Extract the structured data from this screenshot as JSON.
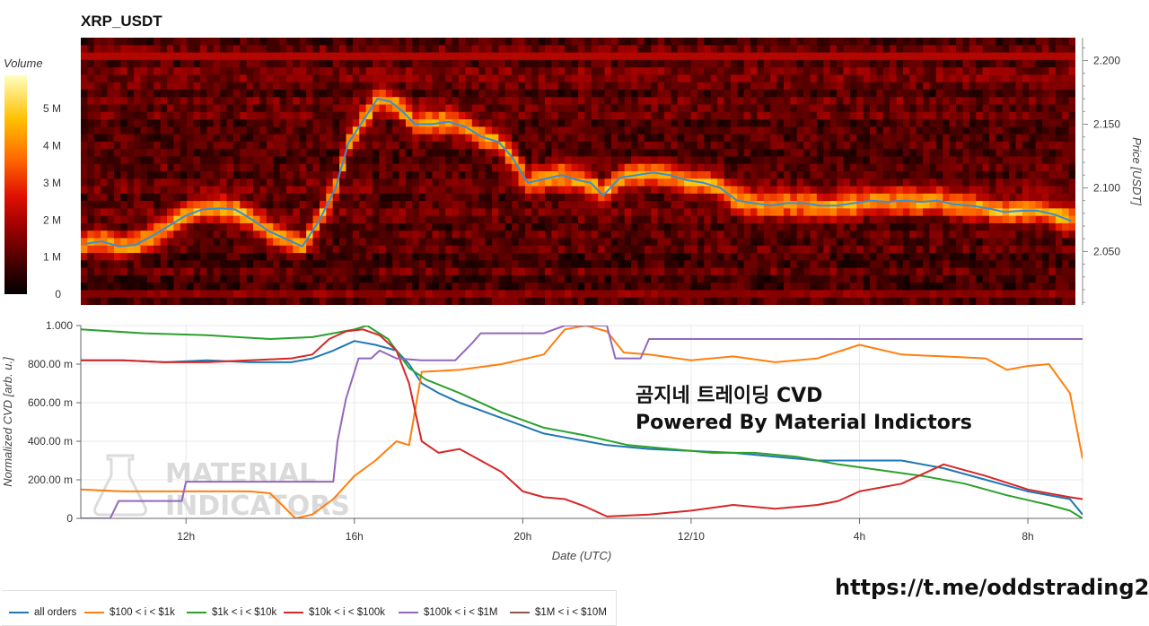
{
  "title": "XRP_USDT",
  "colorbar": {
    "title": "Volume",
    "ticks": [
      {
        "value": 0,
        "label": "0"
      },
      {
        "value": 1,
        "label": "1 M"
      },
      {
        "value": 2,
        "label": "2 M"
      },
      {
        "value": 3,
        "label": "3 M"
      },
      {
        "value": 4,
        "label": "4 M"
      },
      {
        "value": 5,
        "label": "5 M"
      }
    ],
    "range": [
      0,
      5.9
    ]
  },
  "overlay": {
    "line1": "곰지네 트레이딩 CVD",
    "line2": "Powered By Material Indictors"
  },
  "watermark": {
    "line1": "MATERIAL",
    "line2": "INDICATORS"
  },
  "link": "https://t.me/oddstrading2",
  "colors": {
    "all_orders": "#1f77b4",
    "c100_1k": "#ff7f0e",
    "c1k_10k": "#2ca02c",
    "c10k_100k": "#d62728",
    "c100k_1m": "#9467bd",
    "c1m_10m": "#8c564b",
    "price_line": "#3a8fd0"
  },
  "chart_data": [
    {
      "type": "heatmap",
      "title": "XRP_USDT",
      "ylabel": "Price [USDT]",
      "ylim": [
        2.008,
        2.218
      ],
      "yticks": [
        {
          "value": 2.05,
          "label": "2.050"
        },
        {
          "value": 2.1,
          "label": "2.100"
        },
        {
          "value": 2.15,
          "label": "2.150"
        },
        {
          "value": 2.2,
          "label": "2.200"
        }
      ],
      "xlim": [
        9.5,
        33.3
      ],
      "price_series": {
        "name": "price",
        "x": [
          9.6,
          10.0,
          10.4,
          10.8,
          11.2,
          11.6,
          12.0,
          12.4,
          12.8,
          13.2,
          13.6,
          14.0,
          14.4,
          14.8,
          15.2,
          15.6,
          15.9,
          16.2,
          16.6,
          16.9,
          17.2,
          17.5,
          17.9,
          18.3,
          18.7,
          19.1,
          19.5,
          19.8,
          20.2,
          20.6,
          21.0,
          21.4,
          21.7,
          22.0,
          22.4,
          22.8,
          23.2,
          23.6,
          24.0,
          24.4,
          24.8,
          25.2,
          25.6,
          26.0,
          26.4,
          26.8,
          27.2,
          27.6,
          28.0,
          28.4,
          28.8,
          29.2,
          29.6,
          30.0,
          30.4,
          30.8,
          31.2,
          31.6,
          32.0,
          32.4,
          32.8,
          33.2
        ],
        "y": [
          2.056,
          2.058,
          2.054,
          2.055,
          2.062,
          2.07,
          2.078,
          2.083,
          2.084,
          2.083,
          2.075,
          2.066,
          2.06,
          2.054,
          2.074,
          2.1,
          2.135,
          2.15,
          2.17,
          2.168,
          2.16,
          2.15,
          2.15,
          2.152,
          2.148,
          2.14,
          2.136,
          2.125,
          2.104,
          2.107,
          2.11,
          2.106,
          2.104,
          2.094,
          2.108,
          2.11,
          2.112,
          2.11,
          2.106,
          2.104,
          2.1,
          2.09,
          2.088,
          2.086,
          2.088,
          2.088,
          2.086,
          2.086,
          2.088,
          2.09,
          2.089,
          2.09,
          2.089,
          2.09,
          2.087,
          2.086,
          2.084,
          2.081,
          2.082,
          2.082,
          2.079,
          2.074
        ]
      }
    },
    {
      "type": "line",
      "xlabel": "Date (UTC)",
      "ylabel": "Normalized CVD [arb. u.]",
      "xlim": [
        9.5,
        33.3
      ],
      "ylim": [
        0,
        1
      ],
      "xticks": [
        {
          "value": 12,
          "label": "12h"
        },
        {
          "value": 16,
          "label": "16h"
        },
        {
          "value": 20,
          "label": "20h"
        },
        {
          "value": 24,
          "label": "12/10"
        },
        {
          "value": 28,
          "label": "4h"
        },
        {
          "value": 32,
          "label": "8h"
        }
      ],
      "yticks": [
        {
          "value": 0,
          "label": "0"
        },
        {
          "value": 0.2,
          "label": "200.00 m"
        },
        {
          "value": 0.4,
          "label": "400.00 m"
        },
        {
          "value": 0.6,
          "label": "600.00 m"
        },
        {
          "value": 0.8,
          "label": "800.00 m"
        },
        {
          "value": 1.0,
          "label": "1.000"
        }
      ],
      "grid": true,
      "legend_position": "bottom",
      "series": [
        {
          "name": "all orders",
          "color": "#1f77b4",
          "x": [
            9.5,
            10.5,
            11.5,
            12.5,
            13.5,
            14.5,
            15.0,
            15.5,
            16.0,
            16.5,
            17.0,
            17.3,
            17.6,
            18.0,
            18.5,
            19.0,
            19.5,
            20.0,
            20.5,
            21.0,
            21.5,
            22.0,
            23.0,
            24.0,
            25.0,
            26.0,
            27.0,
            28.0,
            29.0,
            30.0,
            31.0,
            32.0,
            33.0,
            33.3
          ],
          "y": [
            0.82,
            0.82,
            0.81,
            0.82,
            0.81,
            0.81,
            0.83,
            0.87,
            0.92,
            0.9,
            0.87,
            0.8,
            0.7,
            0.65,
            0.6,
            0.56,
            0.52,
            0.48,
            0.44,
            0.42,
            0.4,
            0.38,
            0.36,
            0.35,
            0.34,
            0.32,
            0.3,
            0.3,
            0.3,
            0.26,
            0.2,
            0.14,
            0.1,
            0.02
          ]
        },
        {
          "name": "$100 < i < $1k",
          "color": "#ff7f0e",
          "x": [
            9.5,
            10.5,
            11.5,
            12.5,
            13.5,
            14.0,
            14.6,
            15.0,
            15.5,
            16.0,
            16.5,
            17.0,
            17.3,
            17.6,
            18.5,
            19.5,
            20.5,
            21.0,
            21.5,
            22.0,
            22.4,
            23.0,
            24.0,
            25.0,
            26.0,
            27.0,
            28.0,
            29.0,
            30.0,
            31.0,
            31.5,
            32.0,
            32.5,
            33.0,
            33.3
          ],
          "y": [
            0.15,
            0.14,
            0.14,
            0.14,
            0.14,
            0.13,
            0.0,
            0.02,
            0.1,
            0.22,
            0.3,
            0.4,
            0.38,
            0.76,
            0.77,
            0.8,
            0.85,
            0.98,
            1.0,
            0.97,
            0.86,
            0.85,
            0.82,
            0.84,
            0.81,
            0.83,
            0.9,
            0.85,
            0.84,
            0.83,
            0.77,
            0.79,
            0.8,
            0.65,
            0.31
          ]
        },
        {
          "name": "$1k < i < $10k",
          "color": "#2ca02c",
          "x": [
            9.5,
            11.0,
            12.5,
            14.0,
            15.0,
            15.5,
            16.0,
            16.3,
            16.8,
            17.3,
            17.7,
            18.5,
            19.5,
            20.5,
            21.5,
            22.5,
            23.5,
            24.5,
            25.5,
            26.5,
            27.5,
            28.5,
            29.5,
            30.5,
            31.5,
            32.5,
            33.0,
            33.3
          ],
          "y": [
            0.98,
            0.96,
            0.95,
            0.93,
            0.94,
            0.96,
            0.98,
            1.0,
            0.93,
            0.78,
            0.72,
            0.65,
            0.55,
            0.47,
            0.43,
            0.38,
            0.36,
            0.34,
            0.34,
            0.32,
            0.28,
            0.25,
            0.22,
            0.18,
            0.12,
            0.07,
            0.04,
            0.0
          ]
        },
        {
          "name": "$10k < i < $100k",
          "color": "#d62728",
          "x": [
            9.5,
            10.5,
            11.5,
            12.5,
            13.5,
            14.5,
            15.0,
            15.4,
            15.8,
            16.2,
            16.6,
            17.0,
            17.3,
            17.6,
            18.0,
            18.5,
            19.0,
            19.5,
            20.0,
            20.5,
            21.0,
            21.5,
            22.0,
            23.0,
            24.0,
            25.0,
            26.0,
            27.0,
            27.5,
            28.0,
            29.0,
            30.0,
            31.0,
            32.0,
            33.0,
            33.3
          ],
          "y": [
            0.82,
            0.82,
            0.81,
            0.81,
            0.82,
            0.83,
            0.85,
            0.93,
            0.97,
            0.98,
            0.95,
            0.87,
            0.7,
            0.4,
            0.34,
            0.36,
            0.3,
            0.24,
            0.14,
            0.11,
            0.1,
            0.06,
            0.01,
            0.02,
            0.04,
            0.07,
            0.05,
            0.07,
            0.09,
            0.14,
            0.18,
            0.28,
            0.22,
            0.15,
            0.11,
            0.1
          ]
        },
        {
          "name": "$100k < i < $1M",
          "color": "#9467bd",
          "x": [
            9.5,
            10.2,
            10.4,
            11.5,
            11.9,
            12.0,
            13.0,
            14.0,
            15.0,
            15.5,
            15.6,
            15.8,
            16.1,
            16.4,
            16.6,
            17.0,
            17.6,
            18.0,
            18.4,
            18.8,
            19.0,
            19.6,
            20.5,
            21.0,
            21.2,
            22.0,
            22.2,
            22.8,
            23.0,
            24.0,
            26.0,
            28.0,
            30.0,
            32.0,
            33.3
          ],
          "y": [
            0.0,
            0.0,
            0.09,
            0.09,
            0.09,
            0.19,
            0.19,
            0.19,
            0.19,
            0.19,
            0.4,
            0.62,
            0.83,
            0.83,
            0.87,
            0.83,
            0.82,
            0.82,
            0.82,
            0.91,
            0.96,
            0.96,
            0.96,
            1.0,
            1.0,
            1.0,
            0.83,
            0.83,
            0.93,
            0.93,
            0.93,
            0.93,
            0.93,
            0.93,
            0.93
          ]
        },
        {
          "name": "$1M < i < $10M",
          "color": "#8c564b",
          "x": [],
          "y": []
        }
      ]
    }
  ]
}
